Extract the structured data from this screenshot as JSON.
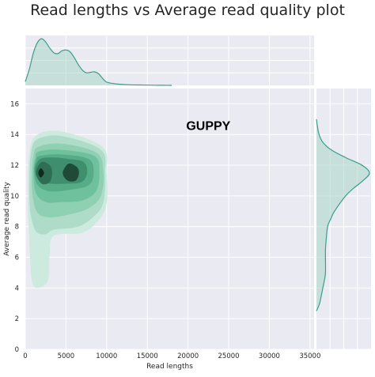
{
  "chart_data": {
    "type": "kde-jointplot",
    "title": "Read lengths vs Average read quality plot",
    "xlabel": "Read lengths",
    "ylabel": "Average read quality",
    "annotation": "GUPPY",
    "xlim": [
      0,
      35500
    ],
    "ylim": [
      0,
      17
    ],
    "x_ticks": [
      0,
      5000,
      10000,
      15000,
      20000,
      25000,
      30000,
      35000
    ],
    "y_ticks": [
      0,
      2,
      4,
      6,
      8,
      10,
      12,
      14,
      16
    ],
    "grid": true,
    "colors": {
      "background": "#EAEAF2",
      "grid": "#FFFFFF",
      "line": "#3A9E88",
      "fill": "#A9D6C9",
      "levels": [
        "#CDEADF",
        "#AEDCC9",
        "#8FCFB2",
        "#6FC09C",
        "#55AC87",
        "#3F8F6E",
        "#2E6E54",
        "#1F4A38",
        "#0F2A1E"
      ]
    },
    "top_marginal": {
      "x": [
        0,
        500,
        1000,
        1500,
        2000,
        2500,
        3000,
        3500,
        4000,
        4500,
        5000,
        5500,
        6000,
        6500,
        7000,
        7500,
        8000,
        8500,
        9000,
        9500,
        10000,
        11000,
        12000,
        13000,
        14000,
        15000,
        16000,
        17000,
        18000
      ],
      "density": [
        0.08,
        0.35,
        0.7,
        0.92,
        1.0,
        0.93,
        0.8,
        0.7,
        0.68,
        0.74,
        0.76,
        0.72,
        0.6,
        0.45,
        0.33,
        0.27,
        0.28,
        0.29,
        0.25,
        0.15,
        0.07,
        0.035,
        0.02,
        0.012,
        0.008,
        0.005,
        0.003,
        0.002,
        0.0
      ]
    },
    "right_marginal": {
      "y": [
        2.5,
        3.0,
        4.0,
        4.5,
        5.0,
        6.0,
        6.5,
        7.0,
        8.0,
        8.5,
        9.0,
        10.0,
        10.5,
        11.0,
        11.5,
        12.0,
        12.5,
        13.0,
        13.5,
        14.0,
        14.5,
        15.0
      ],
      "density": [
        0.0,
        0.06,
        0.12,
        0.15,
        0.17,
        0.17,
        0.17,
        0.18,
        0.21,
        0.27,
        0.34,
        0.55,
        0.7,
        0.88,
        1.0,
        0.86,
        0.55,
        0.28,
        0.12,
        0.05,
        0.02,
        0.0
      ]
    },
    "joint_kde": {
      "levels": [
        [
          [
            1500,
            14.0
          ],
          [
            4500,
            14.2
          ],
          [
            9500,
            13.2
          ],
          [
            10000,
            11.5
          ],
          [
            10000,
            9.5
          ],
          [
            9000,
            8.4
          ],
          [
            7000,
            7.6
          ],
          [
            3500,
            7.4
          ],
          [
            3000,
            6.2
          ],
          [
            2800,
            4.5
          ],
          [
            1500,
            4.0
          ],
          [
            800,
            4.5
          ],
          [
            500,
            7.0
          ],
          [
            300,
            10.0
          ],
          [
            500,
            12.8
          ]
        ],
        [
          [
            1500,
            13.7
          ],
          [
            4500,
            13.9
          ],
          [
            9300,
            13.0
          ],
          [
            9800,
            11.5
          ],
          [
            9600,
            9.6
          ],
          [
            8500,
            8.7
          ],
          [
            6500,
            8.0
          ],
          [
            3500,
            7.8
          ],
          [
            2500,
            7.5
          ],
          [
            1300,
            7.7
          ],
          [
            600,
            9.0
          ],
          [
            500,
            11.0
          ],
          [
            700,
            12.8
          ]
        ],
        [
          [
            1600,
            13.2
          ],
          [
            4500,
            13.4
          ],
          [
            8800,
            12.8
          ],
          [
            9600,
            11.5
          ],
          [
            9300,
            10.0
          ],
          [
            7800,
            9.2
          ],
          [
            5500,
            8.8
          ],
          [
            3000,
            8.6
          ],
          [
            1500,
            8.9
          ],
          [
            900,
            10.0
          ],
          [
            800,
            11.5
          ],
          [
            1000,
            12.6
          ]
        ],
        [
          [
            1700,
            12.9
          ],
          [
            4500,
            13.0
          ],
          [
            8500,
            12.6
          ],
          [
            9100,
            11.5
          ],
          [
            8700,
            10.3
          ],
          [
            7000,
            9.7
          ],
          [
            4500,
            9.6
          ],
          [
            2500,
            9.6
          ],
          [
            1300,
            10.2
          ],
          [
            1000,
            11.5
          ],
          [
            1200,
            12.4
          ]
        ],
        [
          [
            1800,
            12.6
          ],
          [
            4500,
            12.7
          ],
          [
            7800,
            12.4
          ],
          [
            8400,
            11.5
          ],
          [
            7800,
            10.7
          ],
          [
            5500,
            10.4
          ],
          [
            3000,
            10.3
          ],
          [
            1500,
            10.7
          ],
          [
            1100,
            11.6
          ],
          [
            1300,
            12.3
          ]
        ],
        [
          [
            1800,
            12.4
          ],
          [
            3500,
            12.5
          ],
          [
            5500,
            12.4
          ],
          [
            7200,
            12.2
          ],
          [
            7600,
            11.5
          ],
          [
            6900,
            10.9
          ],
          [
            5000,
            10.8
          ],
          [
            3000,
            10.8
          ],
          [
            1700,
            11.0
          ],
          [
            1200,
            11.7
          ]
        ],
        [
          [
            1300,
            11.5
          ],
          [
            2000,
            12.2
          ],
          [
            3000,
            12.0
          ],
          [
            3300,
            11.5
          ],
          [
            3000,
            10.9
          ],
          [
            2000,
            10.8
          ]
        ],
        [
          [
            4600,
            11.5
          ],
          [
            5300,
            12.1
          ],
          [
            6300,
            11.9
          ],
          [
            6600,
            11.5
          ],
          [
            6200,
            11.0
          ],
          [
            5200,
            11.0
          ]
        ],
        [
          [
            1600,
            11.5
          ],
          [
            1900,
            11.8
          ],
          [
            2300,
            11.5
          ],
          [
            1900,
            11.2
          ]
        ]
      ]
    }
  }
}
